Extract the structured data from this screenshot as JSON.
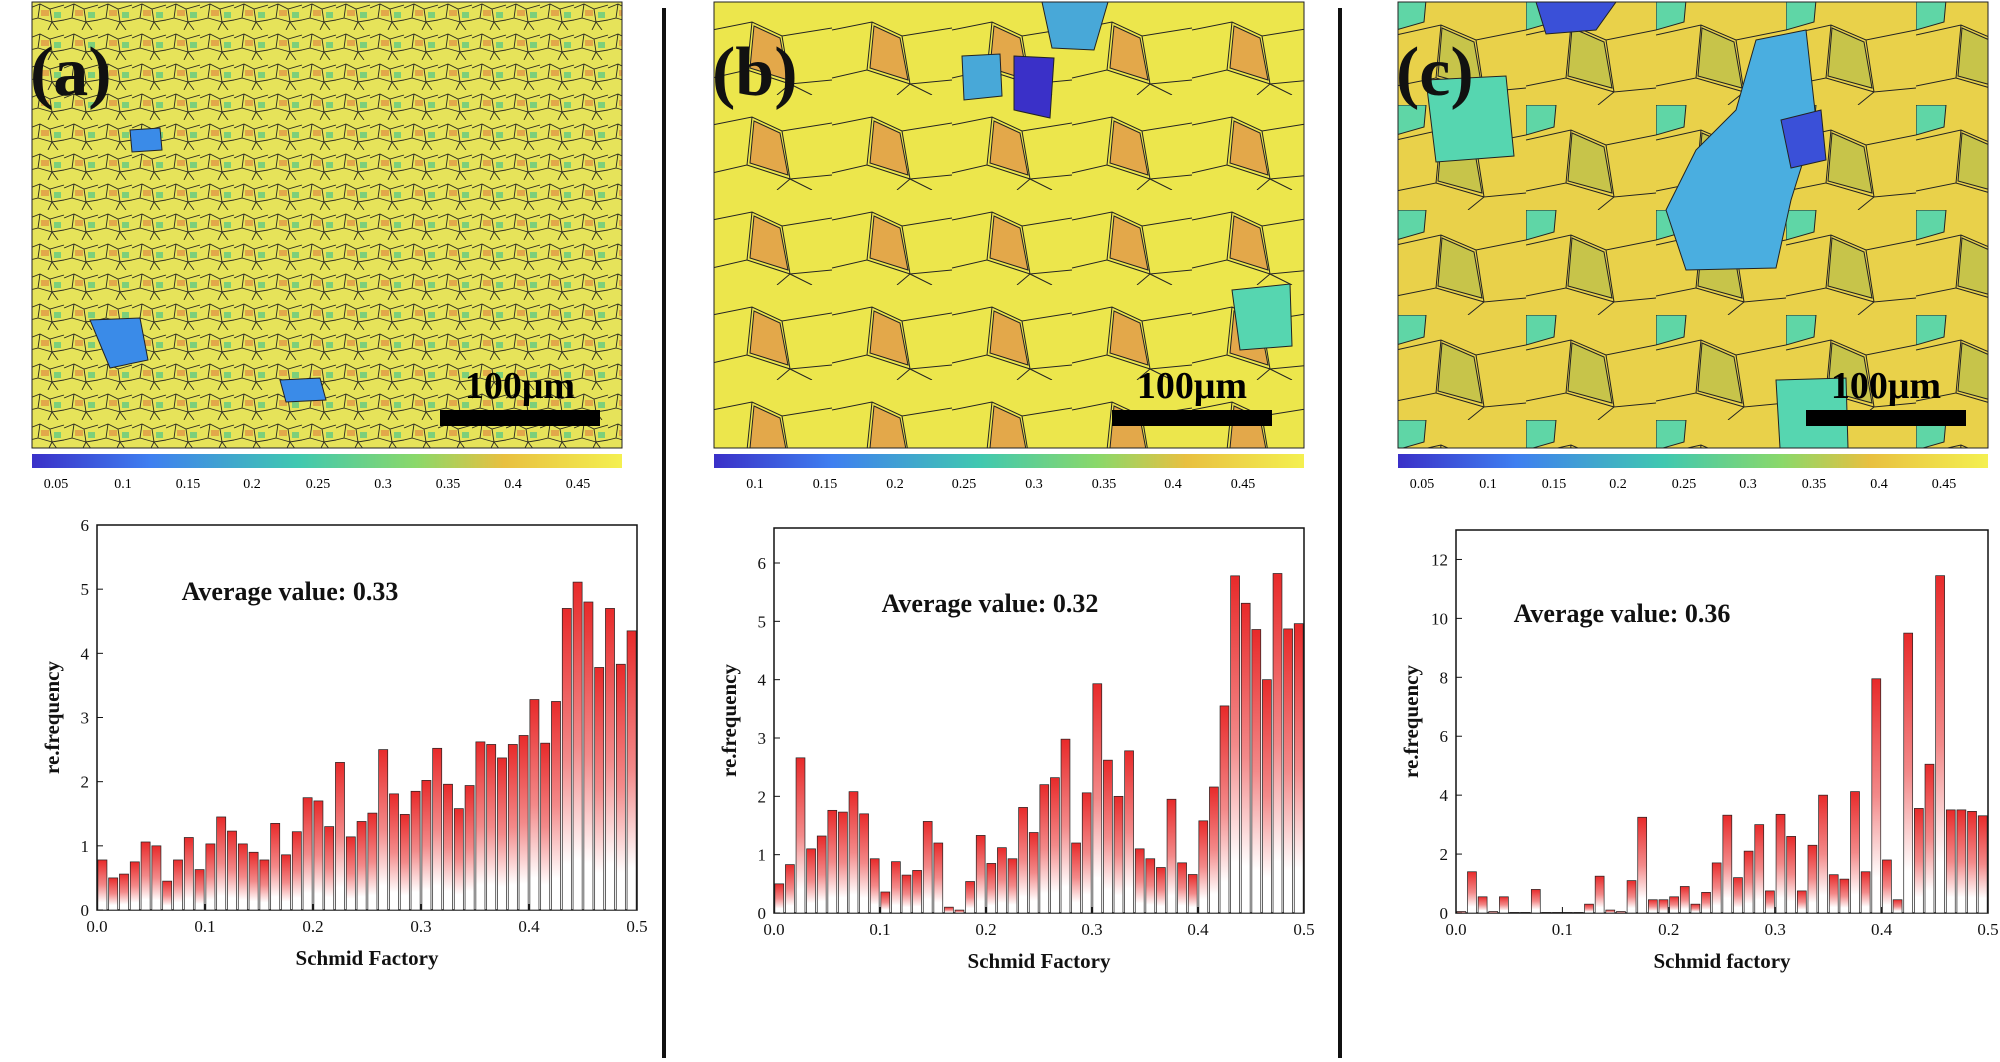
{
  "panels": [
    {
      "label": "(a)",
      "scale_bar": "100μm",
      "colorbar_ticks": [
        "0.05",
        "0.1",
        "0.15",
        "0.2",
        "0.25",
        "0.3",
        "0.35",
        "0.4",
        "0.45"
      ],
      "average_text": "Average value: 0.33"
    },
    {
      "label": "(b)",
      "scale_bar": "100μm",
      "colorbar_ticks": [
        "0.1",
        "0.15",
        "0.2",
        "0.25",
        "0.3",
        "0.35",
        "0.4",
        "0.45"
      ],
      "average_text": "Average value: 0.32"
    },
    {
      "label": "(c)",
      "scale_bar": "100μm",
      "colorbar_ticks": [
        "0.05",
        "0.1",
        "0.15",
        "0.2",
        "0.25",
        "0.3",
        "0.35",
        "0.4",
        "0.45"
      ],
      "average_text": "Average value: 0.36"
    }
  ],
  "chart_data": [
    {
      "type": "bar",
      "title": "",
      "xlabel": "Schmid Factory",
      "ylabel": "re.frequency",
      "xlim": [
        0,
        0.5
      ],
      "ylim": [
        0,
        6
      ],
      "xticks": [
        "0.0",
        "0.1",
        "0.2",
        "0.3",
        "0.4",
        "0.5"
      ],
      "yticks": [
        "0",
        "1",
        "2",
        "3",
        "4",
        "5",
        "6"
      ],
      "bin_width": 0.01,
      "x": [
        0.005,
        0.015,
        0.025,
        0.035,
        0.045,
        0.055,
        0.065,
        0.075,
        0.085,
        0.095,
        0.105,
        0.115,
        0.125,
        0.135,
        0.145,
        0.155,
        0.165,
        0.175,
        0.185,
        0.195,
        0.205,
        0.215,
        0.225,
        0.235,
        0.245,
        0.255,
        0.265,
        0.275,
        0.285,
        0.295,
        0.305,
        0.315,
        0.325,
        0.335,
        0.345,
        0.355,
        0.365,
        0.375,
        0.385,
        0.395,
        0.405,
        0.415,
        0.425,
        0.435,
        0.445,
        0.455,
        0.465,
        0.475,
        0.485,
        0.495
      ],
      "values": [
        0.78,
        0.5,
        0.56,
        0.75,
        1.06,
        1.0,
        0.45,
        0.78,
        1.13,
        0.63,
        1.03,
        1.45,
        1.23,
        1.03,
        0.9,
        0.78,
        1.35,
        0.86,
        1.22,
        1.75,
        1.7,
        1.3,
        2.3,
        1.14,
        1.38,
        1.51,
        2.5,
        1.81,
        1.49,
        1.85,
        2.02,
        2.52,
        1.96,
        1.58,
        1.94,
        2.62,
        2.58,
        2.37,
        2.58,
        2.72,
        3.28,
        2.6,
        3.25,
        4.7,
        5.11,
        4.8,
        3.78,
        4.7,
        3.83,
        4.35
      ],
      "annotation": "Average value: 0.33"
    },
    {
      "type": "bar",
      "title": "",
      "xlabel": "Schmid Factory",
      "ylabel": "re.frequency",
      "xlim": [
        0,
        0.5
      ],
      "ylim": [
        0,
        6.6
      ],
      "xticks": [
        "0.0",
        "0.1",
        "0.2",
        "0.3",
        "0.4",
        "0.5"
      ],
      "yticks": [
        "0",
        "1",
        "2",
        "3",
        "4",
        "5",
        "6"
      ],
      "bin_width": 0.01,
      "x": [
        0.005,
        0.015,
        0.025,
        0.035,
        0.045,
        0.055,
        0.065,
        0.075,
        0.085,
        0.095,
        0.105,
        0.115,
        0.125,
        0.135,
        0.145,
        0.155,
        0.165,
        0.175,
        0.185,
        0.195,
        0.205,
        0.215,
        0.225,
        0.235,
        0.245,
        0.255,
        0.265,
        0.275,
        0.285,
        0.295,
        0.305,
        0.315,
        0.325,
        0.335,
        0.345,
        0.355,
        0.365,
        0.375,
        0.385,
        0.395,
        0.405,
        0.415,
        0.425,
        0.435,
        0.445,
        0.455,
        0.465,
        0.475,
        0.485,
        0.495
      ],
      "values": [
        0.5,
        0.83,
        2.66,
        1.1,
        1.32,
        1.76,
        1.73,
        2.08,
        1.7,
        0.93,
        0.36,
        0.88,
        0.65,
        0.73,
        1.57,
        1.2,
        0.1,
        0.05,
        0.54,
        1.33,
        0.85,
        1.12,
        0.93,
        1.81,
        1.38,
        2.2,
        2.32,
        2.98,
        1.2,
        2.06,
        3.93,
        2.62,
        2.0,
        2.78,
        1.1,
        0.93,
        0.78,
        1.95,
        0.86,
        0.66,
        1.58,
        2.16,
        3.55,
        5.78,
        5.31,
        4.86,
        4.0,
        5.82,
        4.87,
        4.96
      ],
      "annotation": "Average value: 0.32"
    },
    {
      "type": "bar",
      "title": "",
      "xlabel": "Schmid factory",
      "ylabel": "re.frequency",
      "xlim": [
        0,
        0.5
      ],
      "ylim": [
        0,
        13
      ],
      "xticks": [
        "0.0",
        "0.1",
        "0.2",
        "0.3",
        "0.4",
        "0.5"
      ],
      "yticks": [
        "0",
        "2",
        "4",
        "6",
        "8",
        "10",
        "12"
      ],
      "bin_width": 0.01,
      "x": [
        0.005,
        0.015,
        0.025,
        0.035,
        0.045,
        0.055,
        0.065,
        0.075,
        0.085,
        0.095,
        0.105,
        0.115,
        0.125,
        0.135,
        0.145,
        0.155,
        0.165,
        0.175,
        0.185,
        0.195,
        0.205,
        0.215,
        0.225,
        0.235,
        0.245,
        0.255,
        0.265,
        0.275,
        0.285,
        0.295,
        0.305,
        0.315,
        0.325,
        0.335,
        0.345,
        0.355,
        0.365,
        0.375,
        0.385,
        0.395,
        0.405,
        0.415,
        0.425,
        0.435,
        0.445,
        0.455,
        0.465,
        0.475,
        0.485,
        0.495
      ],
      "values": [
        0.05,
        1.4,
        0.55,
        0.05,
        0.55,
        0.02,
        0.02,
        0.8,
        0.02,
        0.02,
        0.02,
        0.02,
        0.3,
        1.25,
        0.1,
        0.05,
        1.1,
        3.25,
        0.45,
        0.45,
        0.55,
        0.9,
        0.3,
        0.7,
        1.7,
        3.32,
        1.2,
        2.1,
        3.0,
        0.75,
        3.35,
        2.6,
        0.75,
        2.3,
        4.0,
        1.3,
        1.15,
        4.12,
        1.4,
        7.95,
        1.8,
        0.45,
        9.5,
        3.55,
        5.05,
        11.45,
        3.5,
        3.5,
        3.45,
        3.3
      ],
      "annotation": "Average value: 0.36"
    }
  ]
}
